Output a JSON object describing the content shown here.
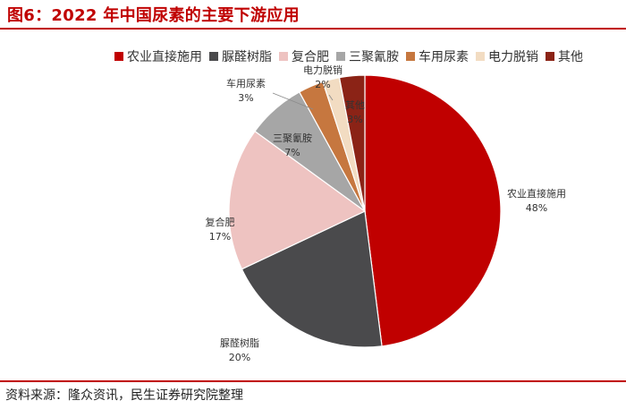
{
  "header": {
    "title": "图6：2022 年中国尿素的主要下游应用"
  },
  "footer": {
    "source": "资料来源：隆众资讯，民生证券研究院整理"
  },
  "chart_data": {
    "type": "pie",
    "title": "",
    "unit": "%",
    "start_angle_deg": 0,
    "direction": "clockwise",
    "legend_position": "top",
    "slices": [
      {
        "label": "农业直接施用",
        "value": 48,
        "value_label": "48%",
        "color": "#c00000"
      },
      {
        "label": "脲醛树脂",
        "value": 20,
        "value_label": "20%",
        "color": "#4a4a4c"
      },
      {
        "label": "复合肥",
        "value": 17,
        "value_label": "17%",
        "color": "#eec3c1"
      },
      {
        "label": "三聚氰胺",
        "value": 7,
        "value_label": "7%",
        "color": "#a6a6a6"
      },
      {
        "label": "车用尿素",
        "value": 3,
        "value_label": "3%",
        "color": "#c6773f"
      },
      {
        "label": "电力脱销",
        "value": 2,
        "value_label": "2%",
        "color": "#f2dcc2"
      },
      {
        "label": "其他",
        "value": 3,
        "value_label": "3%",
        "color": "#8b2316"
      }
    ]
  }
}
